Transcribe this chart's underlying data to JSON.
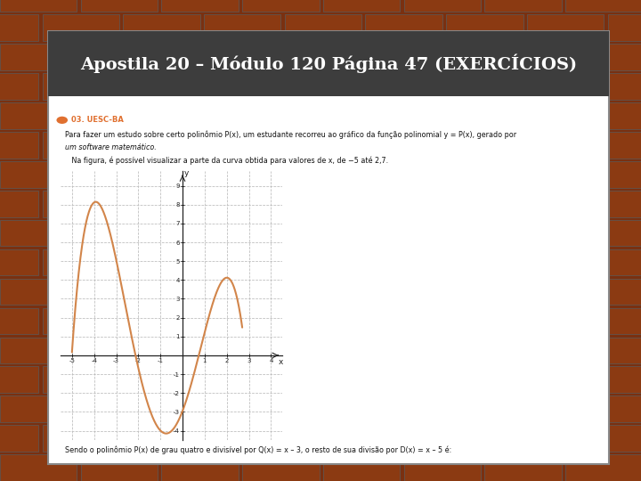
{
  "title": "Apostila 20 – Módulo 120 Página 47 (EXERCÍCIOS)",
  "header_bg": "#3d3d3d",
  "header_text_color": "#ffffff",
  "slide_bg": "#ffffff",
  "outer_bg": "#7a3010",
  "question_label": "03. UESC-BA",
  "question_label_color": "#e07030",
  "bullet_color": "#e07030",
  "text1": "Para fazer um estudo sobre certo polinômio P(x), um estudante recorreu ao gráfico da função polinomial y = P(x), gerado por",
  "text2": "um software matemático.",
  "text3": "   Na figura, é possível visualizar a parte da curva obtida para valores de x, de −5 até 2,7.",
  "footer_text": "Sendo o polinômio P(x) de grau quatro e divisível por Q(x) = x – 3, o resto de sua divisão por D(x) = x – 5 é:",
  "curve_color": "#D2854A",
  "curve_linewidth": 1.5,
  "graph_xlim": [
    -5.5,
    4.5
  ],
  "graph_ylim": [
    -4.5,
    9.8
  ],
  "x_ticks": [
    -5,
    -4,
    -3,
    -2,
    -1,
    1,
    2,
    3,
    4
  ],
  "y_ticks": [
    -4,
    -3,
    -2,
    -1,
    1,
    2,
    3,
    4,
    5,
    6,
    7,
    8,
    9
  ],
  "grid_color": "#bbbbbb",
  "grid_style": "--",
  "x_start": -5.0,
  "x_end": 2.7,
  "poly_pts_x": [
    -5.0,
    -4.0,
    -1.5,
    0.5,
    2.0,
    2.7
  ],
  "poly_pts_y": [
    0.0,
    8.5,
    -3.5,
    0.0,
    3.0,
    2.0
  ]
}
